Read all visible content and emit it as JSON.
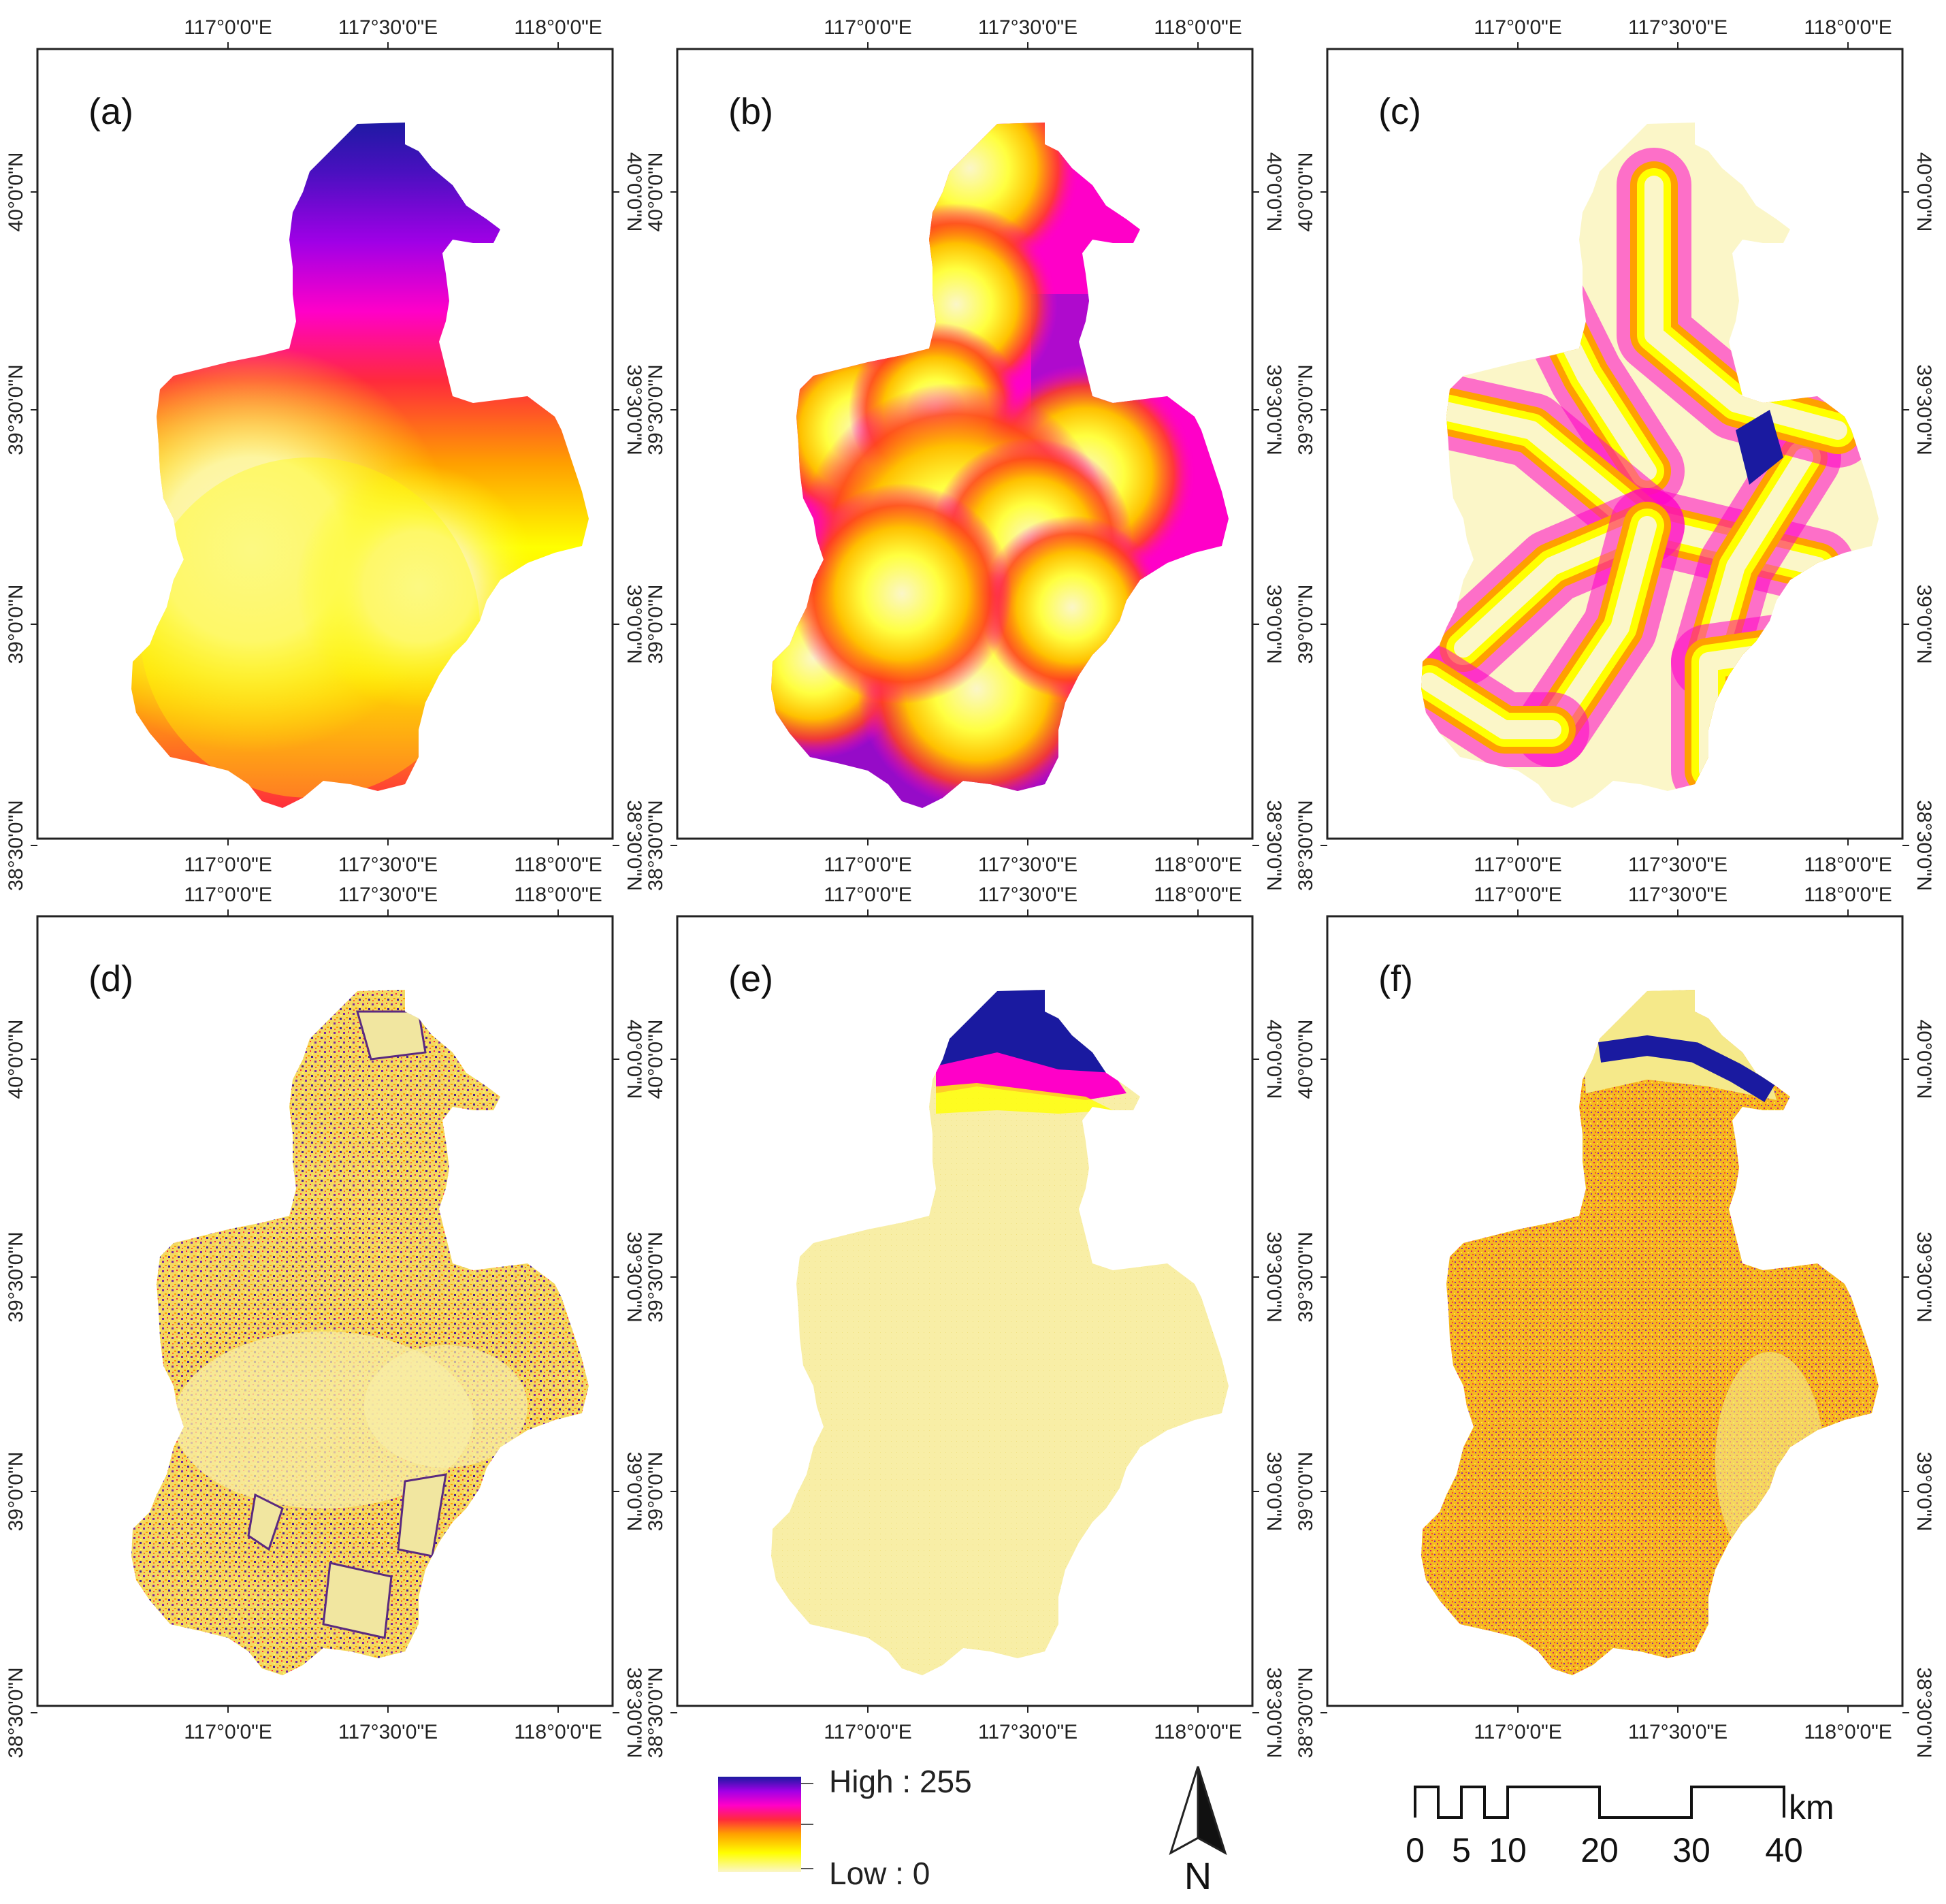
{
  "figure": {
    "panel_letters": [
      "(a)",
      "(b)",
      "(c)",
      "(d)",
      "(e)",
      "(f)"
    ],
    "x_ticks": [
      "117°0'0\"E",
      "117°30'0\"E",
      "118°0'0\"E"
    ],
    "y_ticks": [
      "40°0'0\"N",
      "39°30'0\"N",
      "39°0'0\"N",
      "38°30'0\"N"
    ]
  },
  "legend": {
    "high_label": "High : 255",
    "low_label": "Low : 0",
    "colors": [
      "#fbf6c8",
      "#ffff00",
      "#ffa000",
      "#ff2a3c",
      "#ff00c8",
      "#a000e6",
      "#1a1aa0"
    ]
  },
  "north_arrow": {
    "label": "N"
  },
  "scale_bar": {
    "unit": "km",
    "ticks": [
      "0",
      "5",
      "10",
      "20",
      "30",
      "40"
    ]
  },
  "panels": [
    {
      "id": "a",
      "pattern": "smooth-gradient"
    },
    {
      "id": "b",
      "pattern": "buffer-circles"
    },
    {
      "id": "c",
      "pattern": "road-buffers"
    },
    {
      "id": "d",
      "pattern": "speckled-land-use"
    },
    {
      "id": "e",
      "pattern": "north-elevation"
    },
    {
      "id": "f",
      "pattern": "speckled-uniform"
    }
  ]
}
